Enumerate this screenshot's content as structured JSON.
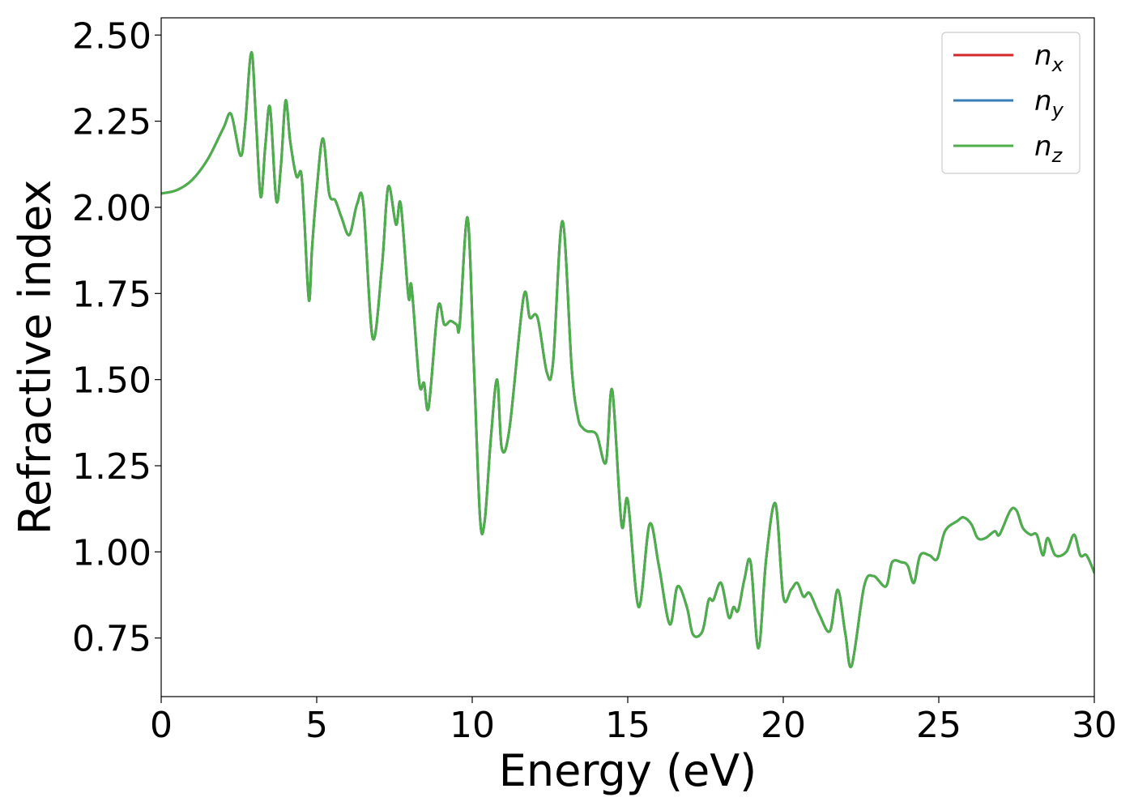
{
  "chart_data": {
    "type": "line",
    "xlabel": "Energy (eV)",
    "ylabel": "Refractive index",
    "xlim": [
      0,
      30
    ],
    "ylim": [
      0.58,
      2.55
    ],
    "xticks": [
      0,
      5,
      10,
      15,
      20,
      25,
      30
    ],
    "xtick_labels": [
      "0",
      "5",
      "10",
      "15",
      "20",
      "25",
      "30"
    ],
    "yticks": [
      0.75,
      1.0,
      1.25,
      1.5,
      1.75,
      2.0,
      2.25,
      2.5
    ],
    "ytick_labels": [
      "0.75",
      "1.00",
      "1.25",
      "1.50",
      "1.75",
      "2.00",
      "2.25",
      "2.50"
    ],
    "grid": false,
    "legend_position": "top-right",
    "x": [
      0,
      0.5,
      1.0,
      1.5,
      2.0,
      2.25,
      2.55,
      2.7,
      2.9,
      3.05,
      3.2,
      3.35,
      3.5,
      3.7,
      3.85,
      4.0,
      4.15,
      4.35,
      4.5,
      4.6,
      4.75,
      4.85,
      5.0,
      5.2,
      5.4,
      5.6,
      5.8,
      6.05,
      6.3,
      6.5,
      6.8,
      7.1,
      7.3,
      7.55,
      7.7,
      7.95,
      8.05,
      8.3,
      8.45,
      8.6,
      8.9,
      9.1,
      9.3,
      9.5,
      9.6,
      9.85,
      10.05,
      10.25,
      10.4,
      10.6,
      10.8,
      10.95,
      11.2,
      11.65,
      11.85,
      12.1,
      12.4,
      12.6,
      12.9,
      13.2,
      13.4,
      13.55,
      13.7,
      14.0,
      14.3,
      14.5,
      14.8,
      15.0,
      15.35,
      15.7,
      16.0,
      16.35,
      16.6,
      16.9,
      17.1,
      17.4,
      17.6,
      17.75,
      18.0,
      18.25,
      18.4,
      18.55,
      18.75,
      18.95,
      19.2,
      19.45,
      19.75,
      20.0,
      20.25,
      20.45,
      20.65,
      20.85,
      21.15,
      21.5,
      21.75,
      22.0,
      22.2,
      22.6,
      22.9,
      23.3,
      23.5,
      23.8,
      24.0,
      24.2,
      24.4,
      24.7,
      24.95,
      25.2,
      25.6,
      25.8,
      26.05,
      26.25,
      26.5,
      26.8,
      26.95,
      27.3,
      27.5,
      27.7,
      27.95,
      28.15,
      28.35,
      28.5,
      28.75,
      29.1,
      29.35,
      29.55,
      29.75,
      30.0
    ],
    "series": [
      {
        "name": "n_x",
        "color": "#d62728",
        "values": [
          2.04,
          2.05,
          2.08,
          2.14,
          2.23,
          2.27,
          2.15,
          2.24,
          2.45,
          2.25,
          2.03,
          2.18,
          2.29,
          2.02,
          2.12,
          2.31,
          2.19,
          2.09,
          2.1,
          1.97,
          1.73,
          1.88,
          2.05,
          2.2,
          2.04,
          2.02,
          1.97,
          1.92,
          2.01,
          2.01,
          1.62,
          1.83,
          2.06,
          1.95,
          2.01,
          1.74,
          1.77,
          1.49,
          1.49,
          1.42,
          1.71,
          1.66,
          1.67,
          1.66,
          1.66,
          1.97,
          1.55,
          1.1,
          1.09,
          1.33,
          1.5,
          1.3,
          1.36,
          1.74,
          1.68,
          1.68,
          1.52,
          1.55,
          1.96,
          1.53,
          1.39,
          1.36,
          1.35,
          1.34,
          1.26,
          1.47,
          1.08,
          1.15,
          0.84,
          1.08,
          0.96,
          0.79,
          0.9,
          0.84,
          0.76,
          0.77,
          0.86,
          0.86,
          0.91,
          0.81,
          0.84,
          0.83,
          0.92,
          0.97,
          0.72,
          0.98,
          1.14,
          0.87,
          0.89,
          0.91,
          0.87,
          0.88,
          0.82,
          0.77,
          0.89,
          0.76,
          0.67,
          0.9,
          0.93,
          0.9,
          0.97,
          0.97,
          0.96,
          0.91,
          0.99,
          0.99,
          0.98,
          1.06,
          1.09,
          1.1,
          1.08,
          1.04,
          1.04,
          1.06,
          1.05,
          1.12,
          1.12,
          1.07,
          1.05,
          1.05,
          0.99,
          1.04,
          0.99,
          1.0,
          1.05,
          0.99,
          0.99,
          0.94
        ]
      },
      {
        "name": "n_y",
        "color": "#377eb8",
        "values": [
          2.04,
          2.05,
          2.08,
          2.14,
          2.23,
          2.27,
          2.15,
          2.24,
          2.45,
          2.25,
          2.03,
          2.18,
          2.29,
          2.02,
          2.12,
          2.31,
          2.19,
          2.09,
          2.1,
          1.97,
          1.73,
          1.88,
          2.05,
          2.2,
          2.04,
          2.02,
          1.97,
          1.92,
          2.01,
          2.01,
          1.62,
          1.83,
          2.06,
          1.95,
          2.01,
          1.74,
          1.77,
          1.49,
          1.49,
          1.42,
          1.71,
          1.66,
          1.67,
          1.66,
          1.66,
          1.97,
          1.55,
          1.1,
          1.09,
          1.33,
          1.5,
          1.3,
          1.36,
          1.74,
          1.68,
          1.68,
          1.52,
          1.55,
          1.96,
          1.53,
          1.39,
          1.36,
          1.35,
          1.34,
          1.26,
          1.47,
          1.08,
          1.15,
          0.84,
          1.08,
          0.96,
          0.79,
          0.9,
          0.84,
          0.76,
          0.77,
          0.86,
          0.86,
          0.91,
          0.81,
          0.84,
          0.83,
          0.92,
          0.97,
          0.72,
          0.98,
          1.14,
          0.87,
          0.89,
          0.91,
          0.87,
          0.88,
          0.82,
          0.77,
          0.89,
          0.76,
          0.67,
          0.9,
          0.93,
          0.9,
          0.97,
          0.97,
          0.96,
          0.91,
          0.99,
          0.99,
          0.98,
          1.06,
          1.09,
          1.1,
          1.08,
          1.04,
          1.04,
          1.06,
          1.05,
          1.12,
          1.12,
          1.07,
          1.05,
          1.05,
          0.99,
          1.04,
          0.99,
          1.0,
          1.05,
          0.99,
          0.99,
          0.94
        ]
      },
      {
        "name": "n_z",
        "color": "#4daf4a",
        "values": [
          2.04,
          2.05,
          2.08,
          2.14,
          2.23,
          2.27,
          2.15,
          2.24,
          2.45,
          2.25,
          2.03,
          2.18,
          2.29,
          2.02,
          2.12,
          2.31,
          2.19,
          2.09,
          2.1,
          1.97,
          1.73,
          1.88,
          2.05,
          2.2,
          2.04,
          2.02,
          1.97,
          1.92,
          2.01,
          2.01,
          1.62,
          1.83,
          2.06,
          1.95,
          2.01,
          1.74,
          1.77,
          1.49,
          1.49,
          1.42,
          1.71,
          1.66,
          1.67,
          1.66,
          1.66,
          1.97,
          1.55,
          1.1,
          1.09,
          1.33,
          1.5,
          1.3,
          1.36,
          1.74,
          1.68,
          1.68,
          1.52,
          1.55,
          1.96,
          1.53,
          1.39,
          1.36,
          1.35,
          1.34,
          1.26,
          1.47,
          1.08,
          1.15,
          0.84,
          1.08,
          0.96,
          0.79,
          0.9,
          0.84,
          0.76,
          0.77,
          0.86,
          0.86,
          0.91,
          0.81,
          0.84,
          0.83,
          0.92,
          0.97,
          0.72,
          0.98,
          1.14,
          0.87,
          0.89,
          0.91,
          0.87,
          0.88,
          0.82,
          0.77,
          0.89,
          0.76,
          0.67,
          0.9,
          0.93,
          0.9,
          0.97,
          0.97,
          0.96,
          0.91,
          0.99,
          0.99,
          0.98,
          1.06,
          1.09,
          1.1,
          1.08,
          1.04,
          1.04,
          1.06,
          1.05,
          1.12,
          1.12,
          1.07,
          1.05,
          1.05,
          0.99,
          1.04,
          0.99,
          1.0,
          1.05,
          0.99,
          0.99,
          0.94
        ]
      }
    ],
    "legend": [
      {
        "symbol": "n",
        "subscript": "x"
      },
      {
        "symbol": "n",
        "subscript": "y"
      },
      {
        "symbol": "n",
        "subscript": "z"
      }
    ]
  }
}
